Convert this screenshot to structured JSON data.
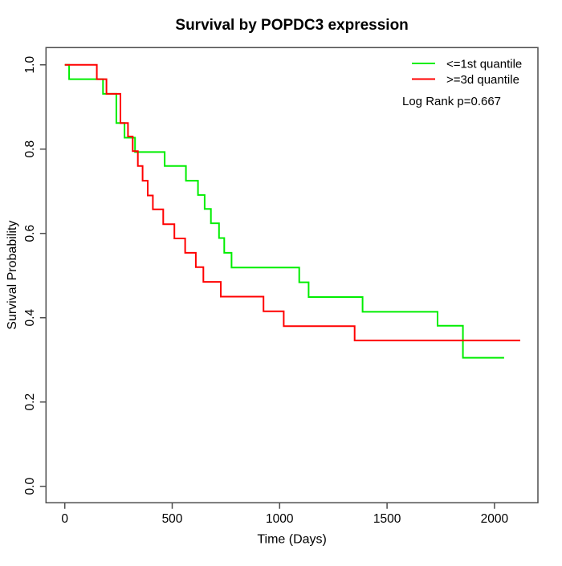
{
  "title": "Survival by POPDC3 expression",
  "axes": {
    "x_label": "Time (Days)",
    "y_label": "Survival Probability",
    "x_tick_labels": [
      "0",
      "500",
      "1000",
      "1500",
      "2000"
    ],
    "y_tick_labels_top_to_bottom": [
      "1.0",
      "0.8",
      "0.6",
      "0.4",
      "0.2",
      "0.0"
    ]
  },
  "legend": {
    "items": [
      {
        "label": "<=1st quantile",
        "color": "#00ee00"
      },
      {
        "label": ">=3d quantile",
        "color": "#ff0000"
      }
    ]
  },
  "annotations": {
    "log_rank": "Log Rank p=0.667"
  },
  "chart_data": {
    "type": "line",
    "subtype": "kaplan-meier-step",
    "title": "Survival by POPDC3 expression",
    "xlabel": "Time (Days)",
    "ylabel": "Survival Probability",
    "xlim": [
      0,
      2200
    ],
    "ylim": [
      0.0,
      1.0
    ],
    "x_ticks": [
      0,
      500,
      1000,
      1500,
      2000
    ],
    "y_ticks": [
      0.0,
      0.2,
      0.4,
      0.6,
      0.8,
      1.0
    ],
    "grid": false,
    "legend_position": "top-right",
    "annotation": "Log Rank p=0.667",
    "series": [
      {
        "name": "<=1st quantile",
        "color": "#00ee00",
        "end_time": 2045,
        "points": [
          [
            0,
            1.0
          ],
          [
            20,
            0.966
          ],
          [
            178,
            0.931
          ],
          [
            240,
            0.862
          ],
          [
            278,
            0.827
          ],
          [
            327,
            0.793
          ],
          [
            465,
            0.76
          ],
          [
            564,
            0.725
          ],
          [
            620,
            0.691
          ],
          [
            651,
            0.658
          ],
          [
            680,
            0.624
          ],
          [
            718,
            0.589
          ],
          [
            742,
            0.554
          ],
          [
            776,
            0.519
          ],
          [
            1091,
            0.484
          ],
          [
            1135,
            0.449
          ],
          [
            1386,
            0.414
          ],
          [
            1735,
            0.381
          ],
          [
            1853,
            0.305
          ]
        ]
      },
      {
        "name": ">=3d quantile",
        "color": "#ff0000",
        "end_time": 2120,
        "points": [
          [
            0,
            1.0
          ],
          [
            149,
            0.966
          ],
          [
            194,
            0.931
          ],
          [
            259,
            0.862
          ],
          [
            294,
            0.83
          ],
          [
            316,
            0.795
          ],
          [
            340,
            0.76
          ],
          [
            362,
            0.725
          ],
          [
            386,
            0.69
          ],
          [
            410,
            0.657
          ],
          [
            458,
            0.622
          ],
          [
            510,
            0.588
          ],
          [
            560,
            0.554
          ],
          [
            610,
            0.52
          ],
          [
            645,
            0.485
          ],
          [
            726,
            0.45
          ],
          [
            925,
            0.415
          ],
          [
            1019,
            0.38
          ],
          [
            1349,
            0.346
          ]
        ]
      }
    ]
  }
}
